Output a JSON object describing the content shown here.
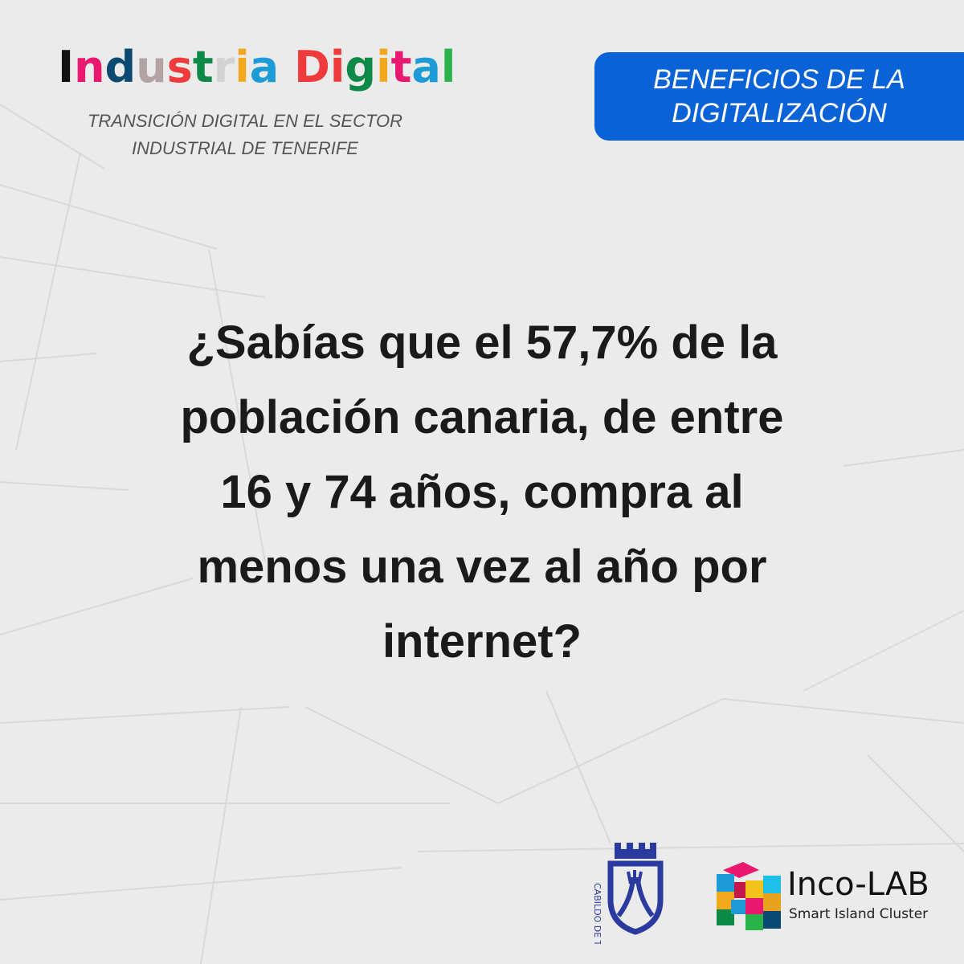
{
  "header": {
    "logo_letters": [
      {
        "ch": "I",
        "color": "#111111"
      },
      {
        "ch": "n",
        "color": "#e8196f"
      },
      {
        "ch": "d",
        "color": "#0a4a72"
      },
      {
        "ch": "u",
        "color": "#b3a3a3"
      },
      {
        "ch": "s",
        "color": "#ef3b3b"
      },
      {
        "ch": "t",
        "color": "#0d8a48"
      },
      {
        "ch": "r",
        "color": "#d2d2d2"
      },
      {
        "ch": "i",
        "color": "#f2a81d"
      },
      {
        "ch": "a",
        "color": "#1d9bd7"
      },
      {
        "ch": " ",
        "color": "#111111"
      },
      {
        "ch": "D",
        "color": "#ef3b3b"
      },
      {
        "ch": "i",
        "color": "#ef3b3b"
      },
      {
        "ch": "g",
        "color": "#0d8a48"
      },
      {
        "ch": "i",
        "color": "#f2a81d"
      },
      {
        "ch": "t",
        "color": "#e8196f"
      },
      {
        "ch": "a",
        "color": "#1d9bd7"
      },
      {
        "ch": "l",
        "color": "#2bb34a"
      }
    ],
    "logo_text": "Industria Digital",
    "subtitle_line1": "TRANSICIÓN DIGITAL EN EL SECTOR",
    "subtitle_line2": "INDUSTRIAL DE TENERIFE"
  },
  "badge": {
    "line1": "BENEFICIOS DE LA",
    "line2": "DIGITALIZACIÓN",
    "color": "#0a63d6"
  },
  "question": {
    "lines": [
      "¿Sabías que el 57,7% de la",
      "población canaria, de entre",
      "16 y 74 años, compra al",
      "menos una vez al año por",
      "internet?"
    ]
  },
  "footer": {
    "cabildo_logo_text": "CABILDO DE TENERIFE",
    "cabildo_color": "#2b3a9e",
    "incolab_name": "Inco-LAB",
    "incolab_tagline": "Smart Island Cluster"
  }
}
